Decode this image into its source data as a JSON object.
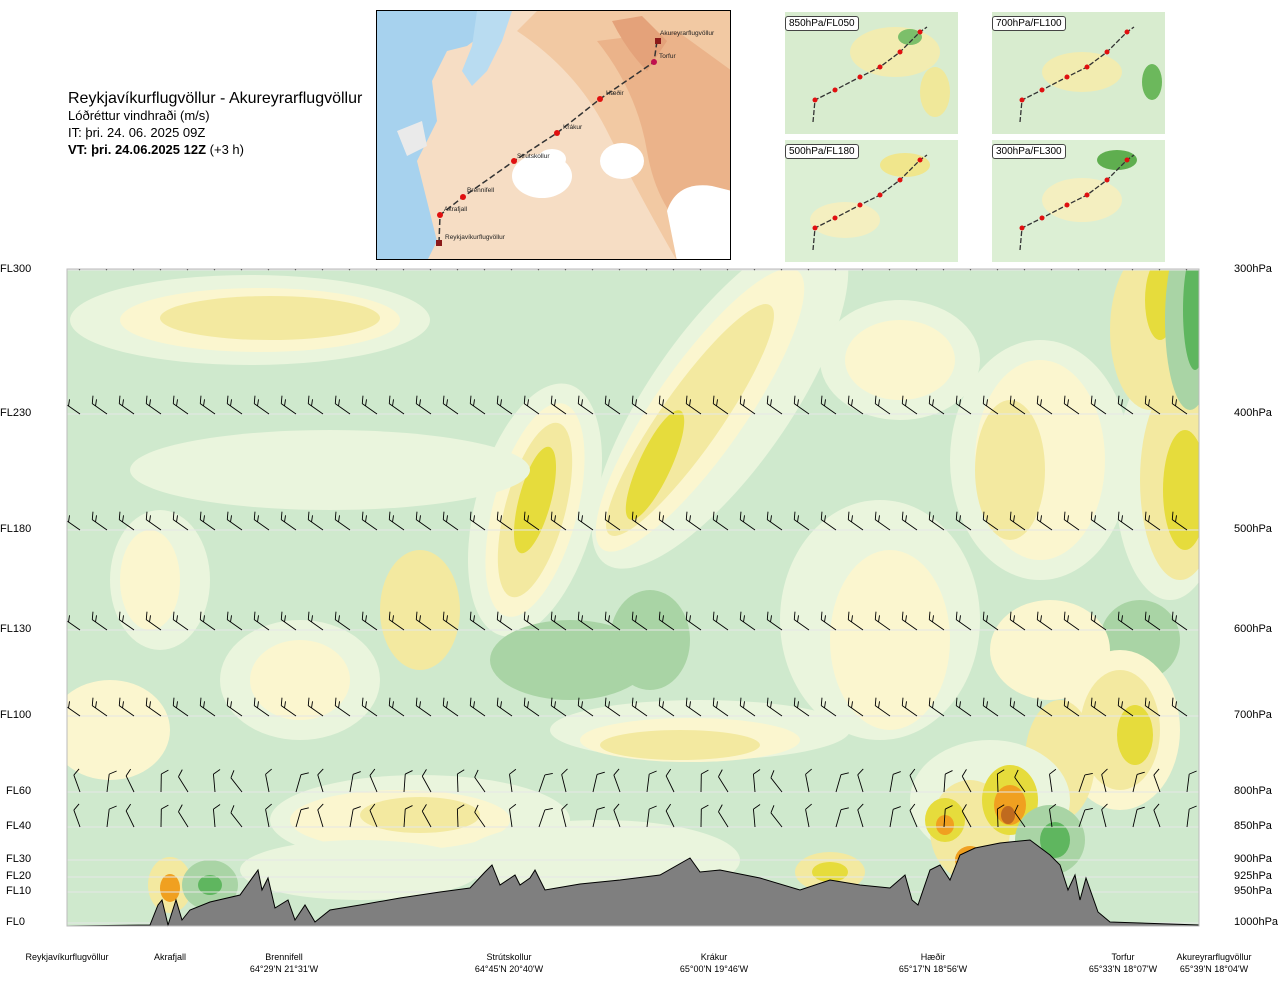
{
  "title": {
    "route": "Reykjavíkurflugvöllur - Akureyrarflugvöllur",
    "parameter": "Lóðréttur vindhraði (m/s)",
    "issue_time": "IT: þri. 24. 06. 2025 09Z",
    "valid_time": "VT: þri. 24.06.2025 12Z",
    "valid_offset": "(+3 h)"
  },
  "map": {
    "waypoints": [
      "Akureyrarflugvöllur",
      "Torfur",
      "Hæðir",
      "Krákur",
      "Strútskollur",
      "Brennifell",
      "Akrafjall",
      "Reykjavíkurflugvöllur"
    ]
  },
  "mini_maps": [
    {
      "label": "850hPa/FL050"
    },
    {
      "label": "700hPa/FL100"
    },
    {
      "label": "500hPa/FL180"
    },
    {
      "label": "300hPa/FL300"
    }
  ],
  "colors": {
    "up_weak": "#fbf6cf",
    "up_mid": "#f3e9a0",
    "up_strong": "#e6dc3c",
    "up_orange": "#f0a020",
    "up_brown": "#c06a1e",
    "down_weak": "#eaf5dd",
    "down_mid": "#cfe9cd",
    "down_strong": "#a9d4a5",
    "down_dark": "#5fb65f",
    "terrain": "#7f7f7f"
  },
  "chart_data": {
    "type": "heatmap",
    "y_levels": [
      {
        "fl": "FL300",
        "hpa": "300hPa"
      },
      {
        "fl": "FL230",
        "hpa": "400hPa"
      },
      {
        "fl": "FL180",
        "hpa": "500hPa"
      },
      {
        "fl": "FL130",
        "hpa": "600hPa"
      },
      {
        "fl": "FL100",
        "hpa": "700hPa"
      },
      {
        "fl": "FL60",
        "hpa": "800hPa"
      },
      {
        "fl": "FL40",
        "hpa": "850hPa"
      },
      {
        "fl": "FL30",
        "hpa": "900hPa"
      },
      {
        "fl": "FL20",
        "hpa": "925hPa"
      },
      {
        "fl": "FL10",
        "hpa": "950hPa"
      },
      {
        "fl": "FL0",
        "hpa": "1000hPa"
      }
    ],
    "locations": [
      {
        "name": "Reykjavíkurflugvöllur",
        "coords": ""
      },
      {
        "name": "Akrafjall",
        "coords": ""
      },
      {
        "name": "Brennifell",
        "coords": "64°29'N 21°31'W"
      },
      {
        "name": "Strútskollur",
        "coords": "64°45'N 20°40'W"
      },
      {
        "name": "Krákur",
        "coords": "65°00'N 19°46'W"
      },
      {
        "name": "Hæðir",
        "coords": "65°17'N 18°56'W"
      },
      {
        "name": "Torfur",
        "coords": "65°33'N 18°07'W"
      },
      {
        "name": "Akureyrarflugvöllur",
        "coords": "65°39'N 18°04'W"
      }
    ]
  }
}
